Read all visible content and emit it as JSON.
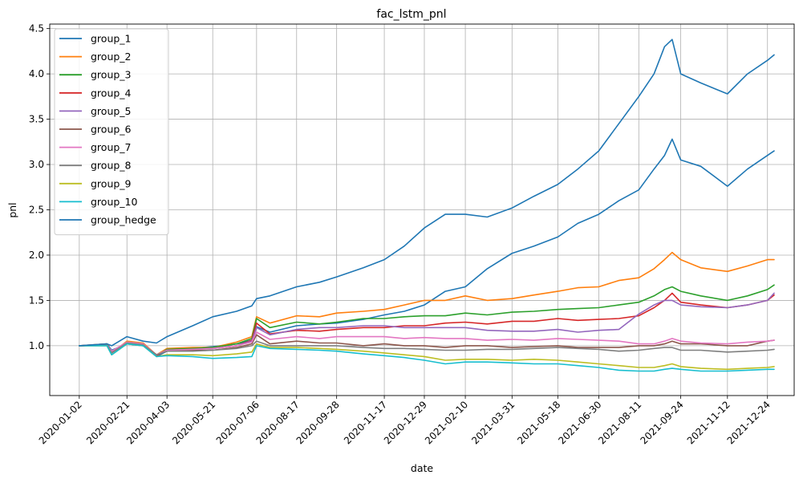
{
  "chart_data": {
    "type": "line",
    "title": "fac_lstm_pnl",
    "xlabel": "date",
    "ylabel": "pnl",
    "grid": true,
    "legend_position": "top-left",
    "xlim": [
      "2019-12-02",
      "2022-01-21"
    ],
    "ylim": [
      0.45,
      4.55
    ],
    "x_ticks": [
      "2020-01-02",
      "2020-02-21",
      "2020-04-03",
      "2020-05-21",
      "2020-07-06",
      "2020-08-17",
      "2020-09-28",
      "2020-11-17",
      "2020-12-29",
      "2021-02-10",
      "2021-03-31",
      "2021-05-18",
      "2021-06-30",
      "2021-08-11",
      "2021-09-24",
      "2021-11-12",
      "2021-12-24"
    ],
    "y_ticks": [
      "1.0",
      "1.5",
      "2.0",
      "2.5",
      "3.0",
      "3.5",
      "4.0",
      "4.5"
    ],
    "x": [
      "2020-01-02",
      "2020-01-31",
      "2020-02-05",
      "2020-02-21",
      "2020-03-09",
      "2020-03-23",
      "2020-04-03",
      "2020-04-30",
      "2020-05-21",
      "2020-06-15",
      "2020-07-01",
      "2020-07-06",
      "2020-07-20",
      "2020-08-17",
      "2020-09-10",
      "2020-09-28",
      "2020-10-26",
      "2020-11-17",
      "2020-12-08",
      "2020-12-29",
      "2021-01-20",
      "2021-02-10",
      "2021-03-05",
      "2021-03-31",
      "2021-04-23",
      "2021-05-18",
      "2021-06-08",
      "2021-06-30",
      "2021-07-21",
      "2021-08-11",
      "2021-08-27",
      "2021-09-07",
      "2021-09-15",
      "2021-09-24",
      "2021-10-15",
      "2021-11-12",
      "2021-12-03",
      "2021-12-24",
      "2021-12-31"
    ],
    "series": [
      {
        "name": "group_1",
        "color": "#1f77b4",
        "values": [
          1.0,
          1.02,
          0.95,
          1.02,
          1.0,
          0.88,
          0.94,
          0.97,
          0.99,
          1.02,
          1.06,
          1.21,
          1.15,
          1.22,
          1.24,
          1.25,
          1.29,
          1.34,
          1.38,
          1.45,
          1.6,
          1.65,
          1.85,
          2.02,
          2.1,
          2.2,
          2.35,
          2.45,
          2.6,
          2.72,
          2.95,
          3.1,
          3.28,
          3.05,
          2.98,
          2.76,
          2.95,
          3.1,
          3.15
        ]
      },
      {
        "name": "group_2",
        "color": "#ff7f0e",
        "values": [
          1.0,
          1.02,
          0.92,
          1.05,
          1.03,
          0.9,
          0.97,
          0.98,
          0.98,
          1.04,
          1.1,
          1.32,
          1.25,
          1.33,
          1.32,
          1.36,
          1.38,
          1.4,
          1.45,
          1.5,
          1.5,
          1.55,
          1.5,
          1.52,
          1.56,
          1.6,
          1.64,
          1.65,
          1.72,
          1.75,
          1.85,
          1.95,
          2.03,
          1.95,
          1.86,
          1.82,
          1.88,
          1.95,
          1.95
        ]
      },
      {
        "name": "group_3",
        "color": "#2ca02c",
        "values": [
          1.0,
          1.01,
          0.93,
          1.04,
          1.02,
          0.89,
          0.96,
          0.97,
          0.98,
          1.02,
          1.08,
          1.3,
          1.2,
          1.26,
          1.24,
          1.26,
          1.3,
          1.3,
          1.32,
          1.33,
          1.33,
          1.36,
          1.34,
          1.37,
          1.38,
          1.4,
          1.41,
          1.42,
          1.45,
          1.48,
          1.55,
          1.62,
          1.65,
          1.6,
          1.55,
          1.5,
          1.55,
          1.62,
          1.67
        ]
      },
      {
        "name": "group_4",
        "color": "#d62728",
        "values": [
          1.0,
          1.01,
          0.93,
          1.03,
          1.01,
          0.89,
          0.95,
          0.96,
          0.97,
          1.0,
          1.06,
          1.25,
          1.13,
          1.17,
          1.16,
          1.18,
          1.2,
          1.2,
          1.22,
          1.22,
          1.25,
          1.26,
          1.24,
          1.27,
          1.27,
          1.3,
          1.28,
          1.29,
          1.3,
          1.33,
          1.42,
          1.5,
          1.58,
          1.48,
          1.45,
          1.42,
          1.45,
          1.5,
          1.56
        ]
      },
      {
        "name": "group_5",
        "color": "#9467bd",
        "values": [
          1.0,
          1.01,
          0.94,
          1.03,
          1.01,
          0.9,
          0.95,
          0.96,
          0.97,
          1.0,
          1.05,
          1.2,
          1.12,
          1.18,
          1.2,
          1.2,
          1.22,
          1.22,
          1.2,
          1.2,
          1.2,
          1.2,
          1.17,
          1.16,
          1.16,
          1.18,
          1.15,
          1.17,
          1.18,
          1.35,
          1.45,
          1.5,
          1.5,
          1.45,
          1.43,
          1.42,
          1.45,
          1.5,
          1.58
        ]
      },
      {
        "name": "group_6",
        "color": "#8c564b",
        "values": [
          1.0,
          1.01,
          0.93,
          1.03,
          1.01,
          0.9,
          0.94,
          0.95,
          0.95,
          0.98,
          1.02,
          1.12,
          1.02,
          1.05,
          1.03,
          1.03,
          1.0,
          1.02,
          1.0,
          1.0,
          0.98,
          1.0,
          1.0,
          0.98,
          0.99,
          1.0,
          0.98,
          0.98,
          0.98,
          1.0,
          1.0,
          1.02,
          1.05,
          1.02,
          1.02,
          1.0,
          1.0,
          1.05,
          1.06
        ]
      },
      {
        "name": "group_7",
        "color": "#e377c2",
        "values": [
          1.0,
          1.01,
          0.94,
          1.04,
          1.02,
          0.9,
          0.95,
          0.96,
          0.97,
          1.0,
          1.04,
          1.15,
          1.07,
          1.1,
          1.08,
          1.1,
          1.1,
          1.1,
          1.08,
          1.09,
          1.08,
          1.08,
          1.06,
          1.07,
          1.06,
          1.08,
          1.07,
          1.06,
          1.05,
          1.02,
          1.02,
          1.05,
          1.08,
          1.05,
          1.03,
          1.02,
          1.04,
          1.05,
          1.06
        ]
      },
      {
        "name": "group_8",
        "color": "#7f7f7f",
        "values": [
          1.0,
          1.01,
          0.92,
          1.03,
          1.01,
          0.9,
          0.94,
          0.94,
          0.95,
          0.97,
          1.0,
          1.05,
          1.0,
          1.0,
          1.0,
          1.0,
          0.98,
          0.97,
          0.97,
          0.96,
          0.95,
          0.95,
          0.96,
          0.96,
          0.97,
          0.98,
          0.97,
          0.96,
          0.94,
          0.95,
          0.97,
          0.98,
          0.98,
          0.95,
          0.95,
          0.93,
          0.94,
          0.95,
          0.96
        ]
      },
      {
        "name": "group_9",
        "color": "#bcbd22",
        "values": [
          1.0,
          1.0,
          0.9,
          1.02,
          1.0,
          0.88,
          0.9,
          0.9,
          0.89,
          0.91,
          0.93,
          1.02,
          0.98,
          0.98,
          0.97,
          0.96,
          0.94,
          0.92,
          0.9,
          0.88,
          0.84,
          0.85,
          0.85,
          0.84,
          0.85,
          0.84,
          0.82,
          0.8,
          0.78,
          0.76,
          0.76,
          0.78,
          0.8,
          0.77,
          0.75,
          0.74,
          0.75,
          0.76,
          0.77
        ]
      },
      {
        "name": "group_10",
        "color": "#17becf",
        "values": [
          1.0,
          1.0,
          0.9,
          1.02,
          1.0,
          0.88,
          0.89,
          0.88,
          0.86,
          0.87,
          0.88,
          1.0,
          0.97,
          0.96,
          0.95,
          0.94,
          0.91,
          0.89,
          0.87,
          0.84,
          0.8,
          0.82,
          0.82,
          0.81,
          0.8,
          0.8,
          0.78,
          0.76,
          0.73,
          0.72,
          0.72,
          0.74,
          0.75,
          0.74,
          0.72,
          0.72,
          0.73,
          0.74,
          0.74
        ]
      },
      {
        "name": "group_hedge",
        "color": "#1f77b4",
        "values": [
          1.0,
          1.02,
          1.0,
          1.1,
          1.05,
          1.03,
          1.1,
          1.22,
          1.32,
          1.38,
          1.44,
          1.52,
          1.55,
          1.65,
          1.7,
          1.76,
          1.86,
          1.95,
          2.1,
          2.3,
          2.45,
          2.45,
          2.42,
          2.52,
          2.65,
          2.78,
          2.95,
          3.15,
          3.45,
          3.75,
          4.0,
          4.3,
          4.38,
          4.0,
          3.9,
          3.78,
          4.0,
          4.15,
          4.21
        ]
      }
    ]
  }
}
